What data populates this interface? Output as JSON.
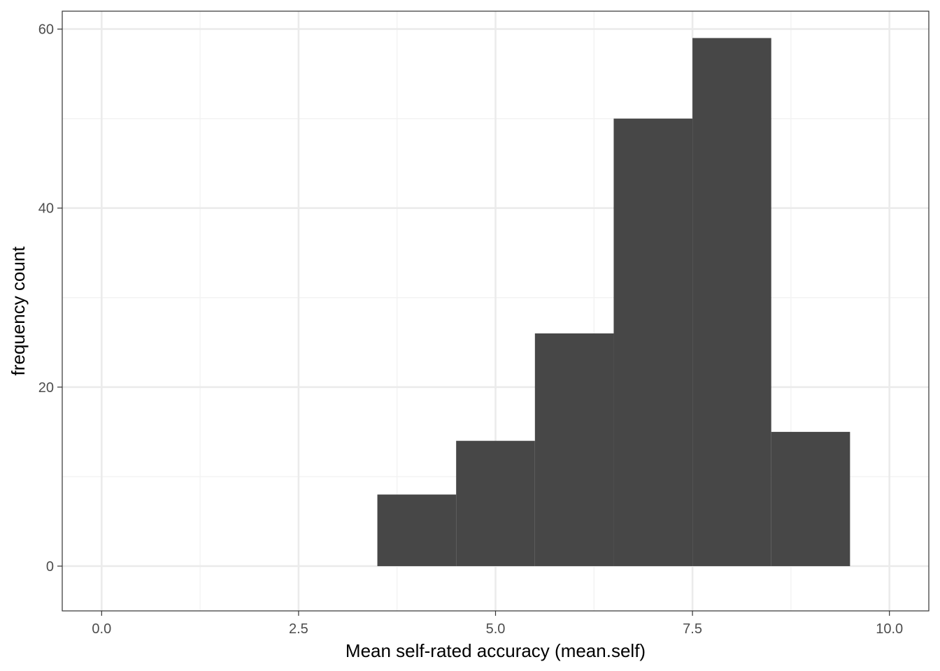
{
  "chart_data": {
    "type": "bar",
    "subtype": "histogram",
    "xlabel": "Mean self-rated accuracy (mean.self)",
    "ylabel": "frequency count",
    "xlim": [
      -0.5,
      10.5
    ],
    "ylim": [
      -5,
      62
    ],
    "x_ticks": [
      0,
      2.5,
      5,
      7.5,
      10
    ],
    "x_tick_labels": [
      "0.0",
      "2.5",
      "5.0",
      "7.5",
      "10.0"
    ],
    "y_ticks": [
      0,
      20,
      40,
      60
    ],
    "y_tick_labels": [
      "0",
      "20",
      "40",
      "60"
    ],
    "x_minor_ticks": [
      1.25,
      3.75,
      6.25,
      8.75
    ],
    "y_minor_ticks": [
      10,
      30,
      50
    ],
    "grid": true,
    "bins": [
      {
        "x0": 3.5,
        "x1": 4.5,
        "count": 8
      },
      {
        "x0": 4.5,
        "x1": 5.5,
        "count": 14
      },
      {
        "x0": 5.5,
        "x1": 6.5,
        "count": 26
      },
      {
        "x0": 6.5,
        "x1": 7.5,
        "count": 50
      },
      {
        "x0": 7.5,
        "x1": 8.5,
        "count": 59
      },
      {
        "x0": 8.5,
        "x1": 9.5,
        "count": 15
      }
    ],
    "colors": {
      "bar": "#474747",
      "grid_major": "#ebebeb",
      "grid_minor": "#f2f2f2",
      "border": "#333333",
      "tick": "#333333"
    }
  }
}
